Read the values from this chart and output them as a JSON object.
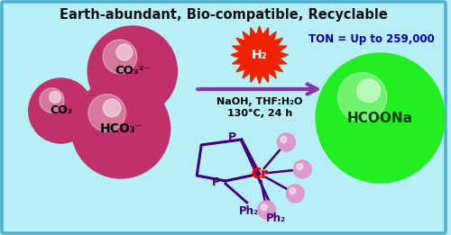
{
  "bg_color": "#b8eef5",
  "border_color": "#4ab0d0",
  "title_text": "Earth-abundant, Bio-compatible, Recyclable",
  "title_color": "#111111",
  "title_fontsize": 10.5,
  "hco3_label": "HCO₃⁻",
  "co2_label": "CO₂",
  "co3_label": "CO₃²⁻",
  "product_label": "HCOONa",
  "h2_label": "H₂",
  "ton_text": "TON = Up to 259,000",
  "ton_color": "#0000bb",
  "conditions1": "NaOH, THF:H₂O",
  "conditions2": "130°C, 24 h",
  "cr_label": "Cr",
  "p_label": "P",
  "ph2_label": "Ph₂",
  "ball_color": "#c0306a",
  "ball_highlight": "#e880a8",
  "product_color": "#22ee22",
  "product_highlight": "#ccffcc",
  "h2_color": "#ee2200",
  "ligand_ball_color": "#dd99cc",
  "arrow_color": "#8833aa",
  "cr_color": "#ee0000",
  "p_color": "#440077",
  "line_color": "#440077",
  "label_color": "#000000"
}
